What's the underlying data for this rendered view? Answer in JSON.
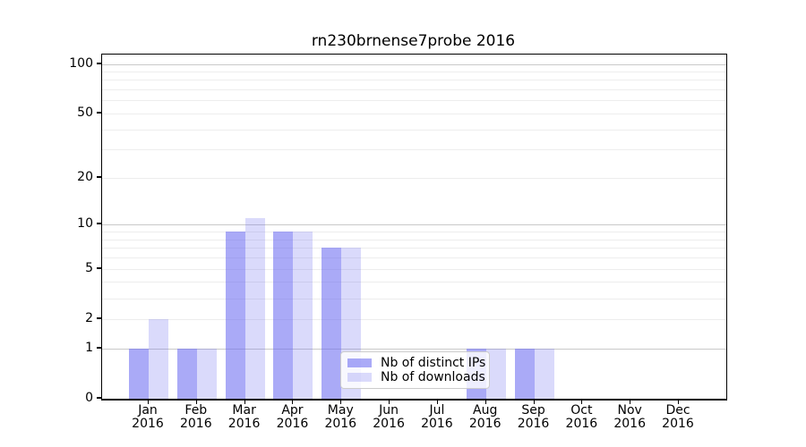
{
  "chart_data": {
    "type": "bar",
    "title": "rn230brnense7probe 2016",
    "x": {
      "categories": [
        {
          "month": "Jan",
          "year": "2016"
        },
        {
          "month": "Feb",
          "year": "2016"
        },
        {
          "month": "Mar",
          "year": "2016"
        },
        {
          "month": "Apr",
          "year": "2016"
        },
        {
          "month": "May",
          "year": "2016"
        },
        {
          "month": "Jun",
          "year": "2016"
        },
        {
          "month": "Jul",
          "year": "2016"
        },
        {
          "month": "Aug",
          "year": "2016"
        },
        {
          "month": "Sep",
          "year": "2016"
        },
        {
          "month": "Oct",
          "year": "2016"
        },
        {
          "month": "Nov",
          "year": "2016"
        },
        {
          "month": "Dec",
          "year": "2016"
        }
      ]
    },
    "series": [
      {
        "name": "Nb of distinct IPs",
        "color": "rgba(108,108,241,0.58)",
        "values": [
          1,
          1,
          9,
          9,
          7,
          0,
          0,
          1,
          1,
          0,
          0,
          0
        ]
      },
      {
        "name": "Nb of downloads",
        "color": "rgba(108,108,241,0.25)",
        "values": [
          2,
          1,
          11,
          9,
          7,
          0,
          0,
          1,
          1,
          0,
          0,
          0
        ]
      }
    ],
    "yscale": "log1p",
    "ylim": [
      0,
      114
    ],
    "yticks": [
      0,
      1,
      2,
      5,
      10,
      20,
      50,
      100
    ],
    "grid": {
      "major_values": [
        1,
        10,
        100
      ],
      "minor_values": [
        2,
        3,
        4,
        5,
        6,
        7,
        8,
        9,
        20,
        30,
        40,
        50,
        60,
        70,
        80,
        90
      ],
      "major_color": "#c9c9c9",
      "minor_color": "#ededed"
    },
    "legend_position": "inside-lower-center"
  }
}
